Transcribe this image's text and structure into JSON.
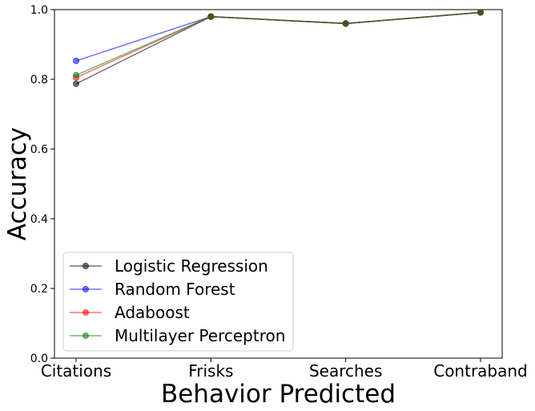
{
  "chart_data": {
    "type": "line",
    "title": "",
    "xlabel": "Behavior Predicted",
    "ylabel": "Accuracy",
    "categories": [
      "Citations",
      "Frisks",
      "Searches",
      "Contraband"
    ],
    "ylim": [
      0.0,
      1.0
    ],
    "yticks": [
      0.0,
      0.2,
      0.4,
      0.6,
      0.8,
      1.0
    ],
    "ytick_labels": [
      "0.0",
      "0.2",
      "0.4",
      "0.6",
      "0.8",
      "1.0"
    ],
    "grid": false,
    "legend_position": "lower-left",
    "series": [
      {
        "name": "Logistic Regression",
        "color": "#000000",
        "values": [
          0.787,
          0.98,
          0.96,
          0.992
        ]
      },
      {
        "name": "Random Forest",
        "color": "#0000ff",
        "values": [
          0.853,
          0.98,
          0.96,
          0.992
        ]
      },
      {
        "name": "Adaboost",
        "color": "#ff0000",
        "values": [
          0.805,
          0.98,
          0.96,
          0.992
        ]
      },
      {
        "name": "Multilayer Perceptron",
        "color": "#008000",
        "values": [
          0.812,
          0.98,
          0.96,
          0.992
        ]
      }
    ]
  }
}
